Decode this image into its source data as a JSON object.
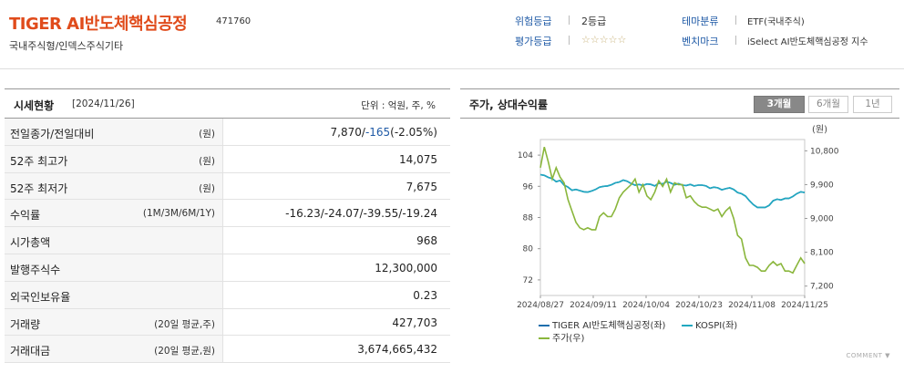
{
  "header": {
    "fund_name": "TIGER AI반도체핵심공정",
    "code": "471760",
    "type": "국내주식형/인덱스주식기타",
    "risk_label": "위험등급",
    "risk_value": "2등급",
    "rating_label": "평가등급",
    "rating_stars": "☆☆☆☆☆",
    "theme_label": "테마분류",
    "theme_value": "ETF(국내주식)",
    "benchmark_label": "벤치마크",
    "benchmark_value": "iSelect AI반도체핵심공정 지수"
  },
  "market": {
    "title": "시세현황",
    "date": "[2024/11/26]",
    "unit": "단위 : 억원, 주, %",
    "rows": [
      {
        "label": "전일종가/전일대비",
        "sub": "(원)",
        "value": "7,870/-165(-2.05%)"
      },
      {
        "label": "52주 최고가",
        "sub": "(원)",
        "value": "14,075"
      },
      {
        "label": "52주 최저가",
        "sub": "(원)",
        "value": "7,675"
      },
      {
        "label": "수익률",
        "sub": "(1M/3M/6M/1Y)",
        "value": "-16.23/-24.07/-39.55/-19.24"
      },
      {
        "label": "시가총액",
        "sub": "",
        "value": "968"
      },
      {
        "label": "발행주식수",
        "sub": "",
        "value": "12,300,000"
      },
      {
        "label": "외국인보유율",
        "sub": "",
        "value": "0.23"
      },
      {
        "label": "거래량",
        "sub": "(20일 평균,주)",
        "value": "427,703"
      },
      {
        "label": "거래대금",
        "sub": "(20일 평균,원)",
        "value": "3,674,665,432"
      }
    ],
    "prev_close": "7,870",
    "change": "-165",
    "change_pct": "(-2.05%)",
    "returns": [
      "-16.23",
      "-24.07",
      "-39.55",
      "-19.24"
    ]
  },
  "chart_panel": {
    "title": "주가, 상대수익률",
    "periods": [
      "3개월",
      "6개월",
      "1년"
    ],
    "active_period": "3개월",
    "comment": "COMMENT ▼"
  },
  "chart_data": {
    "type": "line",
    "unit_label": "(원)",
    "x_tick_labels": [
      "2024/08/27",
      "2024/09/11",
      "2024/10/04",
      "2024/10/23",
      "2024/11/08",
      "2024/11/25"
    ],
    "y_left_ticks": [
      104,
      96,
      88,
      80,
      72
    ],
    "y_left_lim": [
      68,
      108
    ],
    "y_right_ticks": [
      "10,800",
      "9,900",
      "9,000",
      "8,100",
      "7,200"
    ],
    "y_right_values": [
      10800,
      9900,
      9000,
      8100,
      7200
    ],
    "y_right_lim": [
      6950,
      11100
    ],
    "colors": {
      "fund": "#1f6fad",
      "kospi": "#21a8c0",
      "price": "#8ab63c"
    },
    "series": [
      {
        "name": "TIGER AI반도체핵심공정(좌)",
        "axis": "left",
        "values": [
          99,
          98.8,
          98.3,
          98,
          97.2,
          97.5,
          96.3,
          95.8,
          95,
          95.2,
          94.9,
          94.6,
          94.5,
          94.8,
          95.2,
          95.8,
          96,
          96.1,
          96.4,
          96.9,
          97.1,
          97.6,
          97.3,
          96.7,
          96.3,
          96.5,
          96.2,
          96.6,
          96.5,
          96.1,
          96.8,
          96.6,
          97.2,
          96.9,
          96.4,
          96.7,
          96.3,
          96.2,
          96.5,
          96.1,
          96.3,
          96.3,
          96.1,
          95.5,
          95.8,
          95.6,
          95.1,
          95.4,
          95.6,
          95.2,
          94.4,
          94.1,
          93.5,
          92.3,
          91.3,
          90.6,
          90.6,
          90.6,
          91.1,
          92.3,
          92.7,
          92.5,
          92.9,
          92.9,
          93.4,
          94.1,
          94.6,
          94.4
        ]
      },
      {
        "name": "KOSPI(좌)",
        "axis": "left",
        "values": [
          99,
          98.8,
          98.3,
          98,
          97.2,
          97.5,
          96.3,
          95.8,
          95,
          95.2,
          94.9,
          94.6,
          94.5,
          94.8,
          95.2,
          95.8,
          96,
          96.1,
          96.4,
          96.9,
          97.1,
          97.6,
          97.3,
          96.7,
          96.3,
          96.5,
          96.2,
          96.6,
          96.5,
          96.1,
          96.8,
          96.6,
          97.2,
          96.9,
          96.4,
          96.7,
          96.3,
          96.2,
          96.5,
          96.1,
          96.3,
          96.3,
          96.1,
          95.5,
          95.8,
          95.6,
          95.1,
          95.4,
          95.6,
          95.2,
          94.4,
          94.1,
          93.5,
          92.3,
          91.3,
          90.6,
          90.6,
          90.6,
          91.1,
          92.3,
          92.7,
          92.5,
          92.9,
          92.9,
          93.4,
          94.1,
          94.6,
          94.4
        ]
      },
      {
        "name": "주가(우)",
        "axis": "right",
        "values": [
          10350,
          10900,
          10500,
          10050,
          10350,
          10100,
          9950,
          9500,
          9200,
          8900,
          8750,
          8700,
          8750,
          8700,
          8700,
          9050,
          9150,
          9050,
          9050,
          9250,
          9550,
          9700,
          9800,
          9900,
          10050,
          9700,
          9900,
          9600,
          9500,
          9700,
          10000,
          9850,
          10050,
          9700,
          9950,
          9900,
          9900,
          9550,
          9600,
          9450,
          9350,
          9300,
          9300,
          9250,
          9200,
          9250,
          9050,
          9200,
          9300,
          9000,
          8550,
          8450,
          7950,
          7750,
          7750,
          7700,
          7600,
          7600,
          7750,
          7850,
          7750,
          7800,
          7600,
          7600,
          7550,
          7750,
          7950,
          7800
        ]
      }
    ]
  }
}
